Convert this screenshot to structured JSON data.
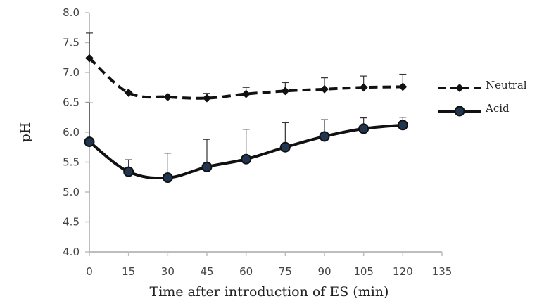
{
  "chart_data": {
    "type": "line",
    "xlabel": "Time after introduction of ES (min)",
    "ylabel": "pH",
    "xlim": [
      0,
      135
    ],
    "ylim": [
      4.0,
      8.0
    ],
    "x_ticks": [
      "0",
      "15",
      "30",
      "45",
      "60",
      "75",
      "90",
      "105",
      "120",
      "135"
    ],
    "y_ticks": [
      "4.0",
      "4.5",
      "5.0",
      "5.5",
      "6.0",
      "6.5",
      "7.0",
      "7.5",
      "8.0"
    ],
    "x": [
      0,
      15,
      30,
      45,
      60,
      75,
      90,
      105,
      120
    ],
    "series": [
      {
        "name": "Neutral",
        "style": "dashed",
        "marker": "diamond",
        "color": "#111111",
        "values": [
          7.24,
          6.66,
          6.59,
          6.57,
          6.64,
          6.69,
          6.72,
          6.75,
          6.76
        ],
        "error": [
          0.42,
          0.0,
          0.0,
          0.08,
          0.11,
          0.14,
          0.19,
          0.19,
          0.21
        ]
      },
      {
        "name": "Acid",
        "style": "solid",
        "marker": "circle",
        "color": "#111111",
        "marker_fill": "#1f3550",
        "values": [
          5.84,
          5.34,
          5.24,
          5.42,
          5.55,
          5.75,
          5.93,
          6.06,
          6.12
        ],
        "error": [
          0.65,
          0.2,
          0.41,
          0.46,
          0.5,
          0.41,
          0.28,
          0.18,
          0.13
        ]
      }
    ],
    "grid": false,
    "legend": "right"
  }
}
